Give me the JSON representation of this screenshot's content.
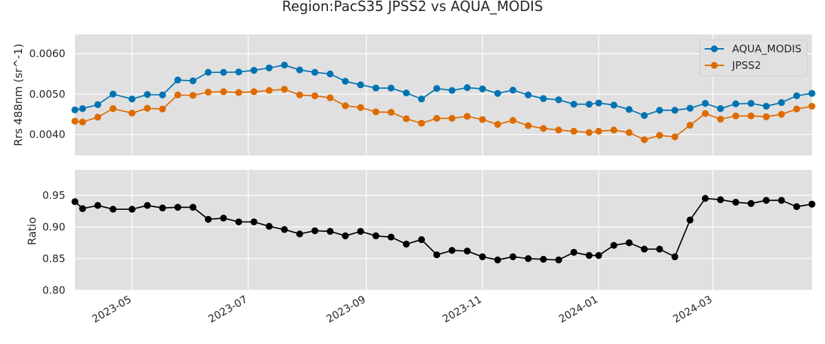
{
  "chart_data": [
    {
      "type": "line",
      "title": "Region:PacS35 JPSS2 vs AQUA_MODIS",
      "ylabel": "Rrs 488nm (sr^-1)",
      "xlabel": "",
      "ylim": [
        0.00348,
        0.00648
      ],
      "yticks": [
        0.004,
        0.005,
        0.006
      ],
      "ytick_labels": [
        "0.0040",
        "0.0050",
        "0.0060"
      ],
      "x_dates": [
        "2023-04-01",
        "2023-04-05",
        "2023-04-13",
        "2023-04-21",
        "2023-05-01",
        "2023-05-09",
        "2023-05-17",
        "2023-05-25",
        "2023-06-02",
        "2023-06-10",
        "2023-06-18",
        "2023-06-26",
        "2023-07-04",
        "2023-07-12",
        "2023-07-20",
        "2023-07-28",
        "2023-08-05",
        "2023-08-13",
        "2023-08-21",
        "2023-08-29",
        "2023-09-06",
        "2023-09-14",
        "2023-09-22",
        "2023-09-30",
        "2023-10-08",
        "2023-10-16",
        "2023-10-24",
        "2023-11-01",
        "2023-11-09",
        "2023-11-17",
        "2023-11-25",
        "2023-12-03",
        "2023-12-11",
        "2023-12-19",
        "2023-12-27",
        "2024-01-01",
        "2024-01-09",
        "2024-01-17",
        "2024-01-25",
        "2024-02-02",
        "2024-02-10",
        "2024-02-18",
        "2024-02-26",
        "2024-03-05",
        "2024-03-13",
        "2024-03-21",
        "2024-03-29",
        "2024-04-06",
        "2024-04-14",
        "2024-04-22"
      ],
      "legend_position": "top-right",
      "grid": true,
      "series": [
        {
          "name": "AQUA_MODIS",
          "color": "#0173b2",
          "values": [
            0.00461,
            0.00464,
            0.00474,
            0.005,
            0.00488,
            0.00499,
            0.00498,
            0.00535,
            0.00533,
            0.00554,
            0.00554,
            0.00555,
            0.00559,
            0.00565,
            0.00572,
            0.0056,
            0.00554,
            0.0055,
            0.00532,
            0.00523,
            0.00515,
            0.00515,
            0.00503,
            0.00488,
            0.00514,
            0.00509,
            0.00516,
            0.00513,
            0.00502,
            0.0051,
            0.00498,
            0.00489,
            0.00486,
            0.00475,
            0.00475,
            0.00478,
            0.00473,
            0.00462,
            0.00447,
            0.0046,
            0.0046,
            0.00465,
            0.00477,
            0.00464,
            0.00476,
            0.00477,
            0.0047,
            0.00479,
            0.00496,
            0.00502
          ]
        },
        {
          "name": "JPSS2",
          "color": "#de6b00",
          "values": [
            0.00433,
            0.00431,
            0.00443,
            0.00464,
            0.00453,
            0.00465,
            0.00463,
            0.00498,
            0.00497,
            0.00505,
            0.00506,
            0.00504,
            0.00506,
            0.00509,
            0.00512,
            0.00498,
            0.00496,
            0.00491,
            0.00471,
            0.00467,
            0.00456,
            0.00455,
            0.00439,
            0.00428,
            0.0044,
            0.0044,
            0.00445,
            0.00437,
            0.00425,
            0.00435,
            0.00422,
            0.00415,
            0.00411,
            0.00408,
            0.00405,
            0.00408,
            0.00411,
            0.00405,
            0.00387,
            0.00398,
            0.00394,
            0.00423,
            0.00452,
            0.00438,
            0.00446,
            0.00446,
            0.00444,
            0.0045,
            0.00463,
            0.0047
          ]
        }
      ]
    },
    {
      "type": "line",
      "title": "",
      "ylabel": "Ratio",
      "xlabel": "",
      "ylim": [
        0.8,
        0.99
      ],
      "yticks": [
        0.8,
        0.85,
        0.9,
        0.95
      ],
      "ytick_labels": [
        "0.80",
        "0.85",
        "0.90",
        "0.95"
      ],
      "x_dates": [
        "2023-04-01",
        "2023-04-05",
        "2023-04-13",
        "2023-04-21",
        "2023-05-01",
        "2023-05-09",
        "2023-05-17",
        "2023-05-25",
        "2023-06-02",
        "2023-06-10",
        "2023-06-18",
        "2023-06-26",
        "2023-07-04",
        "2023-07-12",
        "2023-07-20",
        "2023-07-28",
        "2023-08-05",
        "2023-08-13",
        "2023-08-21",
        "2023-08-29",
        "2023-09-06",
        "2023-09-14",
        "2023-09-22",
        "2023-09-30",
        "2023-10-08",
        "2023-10-16",
        "2023-10-24",
        "2023-11-01",
        "2023-11-09",
        "2023-11-17",
        "2023-11-25",
        "2023-12-03",
        "2023-12-11",
        "2023-12-19",
        "2023-12-27",
        "2024-01-01",
        "2024-01-09",
        "2024-01-17",
        "2024-01-25",
        "2024-02-02",
        "2024-02-10",
        "2024-02-18",
        "2024-02-26",
        "2024-03-05",
        "2024-03-13",
        "2024-03-21",
        "2024-03-29",
        "2024-04-06",
        "2024-04-14",
        "2024-04-22"
      ],
      "grid": true,
      "series": [
        {
          "color": "#000000",
          "values": [
            0.94,
            0.929,
            0.934,
            0.928,
            0.928,
            0.934,
            0.93,
            0.931,
            0.931,
            0.912,
            0.914,
            0.908,
            0.908,
            0.901,
            0.896,
            0.889,
            0.894,
            0.893,
            0.886,
            0.893,
            0.886,
            0.884,
            0.873,
            0.88,
            0.856,
            0.863,
            0.862,
            0.853,
            0.848,
            0.853,
            0.85,
            0.849,
            0.848,
            0.86,
            0.855,
            0.855,
            0.871,
            0.875,
            0.865,
            0.865,
            0.853,
            0.911,
            0.945,
            0.943,
            0.939,
            0.937,
            0.942,
            0.942,
            0.932,
            0.936
          ]
        }
      ]
    }
  ],
  "x_axis": {
    "min_date": "2023-04-01",
    "max_date": "2024-04-22",
    "ticks": [
      "2023-05-01",
      "2023-07-01",
      "2023-09-01",
      "2023-11-01",
      "2024-01-01",
      "2024-03-01"
    ],
    "tick_labels": [
      "2023-05",
      "2023-07",
      "2023-09",
      "2023-11",
      "2024-01",
      "2024-03"
    ]
  }
}
